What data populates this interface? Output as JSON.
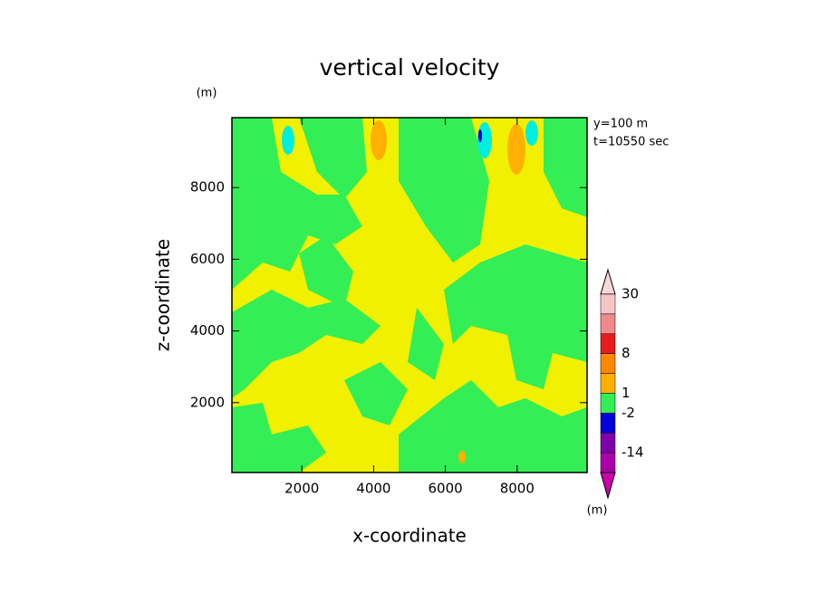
{
  "chart_data": {
    "type": "contour",
    "title": "vertical velocity",
    "y_unit": "(m)",
    "x_label": "x-coordinate",
    "y_label": "z-coordinate",
    "annotations": [
      "y=100 m",
      "t=10550 sec"
    ],
    "xlim": [
      50,
      9950
    ],
    "ylim": [
      50,
      9950
    ],
    "xticks": [
      2000,
      4000,
      6000,
      8000
    ],
    "yticks": [
      2000,
      4000,
      6000,
      8000
    ],
    "colorbar": {
      "unit": "(m)",
      "levels": [
        30,
        null,
        null,
        8,
        null,
        1,
        -2,
        null,
        -14,
        null
      ],
      "colors": [
        "#f8d8d8",
        "#f7c4c4",
        "#f08a8a",
        "#e81c1c",
        "#ff8800",
        "#ffb000",
        "#33ee55",
        "#0000dd",
        "#7f00aa",
        "#aa00aa",
        "#cc00aa"
      ]
    }
  }
}
